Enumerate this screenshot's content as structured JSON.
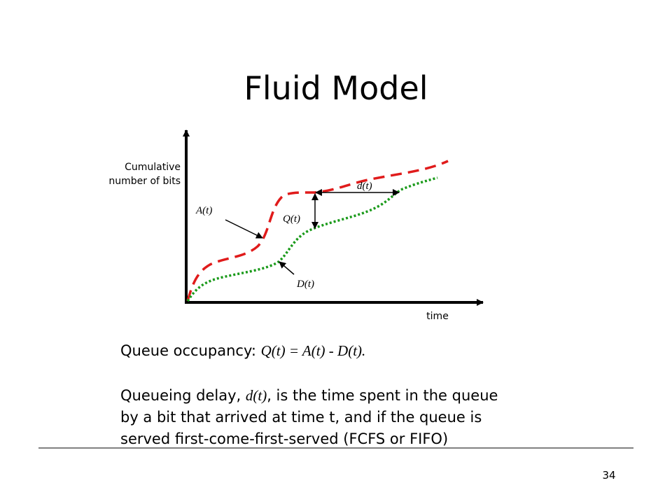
{
  "title": "Fluid Model",
  "diagram": {
    "y_axis_label": [
      "Cumulative",
      "number of bits"
    ],
    "x_axis_label": "time",
    "labels": {
      "arrival": "A(t)",
      "departure": "D(t)",
      "queue": "Q(t)",
      "delay": "d(t)"
    }
  },
  "body": {
    "occupancy": {
      "lead": "Queue occupancy: ",
      "formula": "Q(t) = A(t) - D(t)."
    },
    "delay": {
      "lead": "Queueing delay, ",
      "symbol": "d(t)",
      "rest": ", is the time spent in the queue",
      "lines": [
        "by a bit that arrived at time t, and if the queue is",
        "served first-come-first-served (FCFS or FIFO)"
      ]
    }
  },
  "page_number": "34"
}
